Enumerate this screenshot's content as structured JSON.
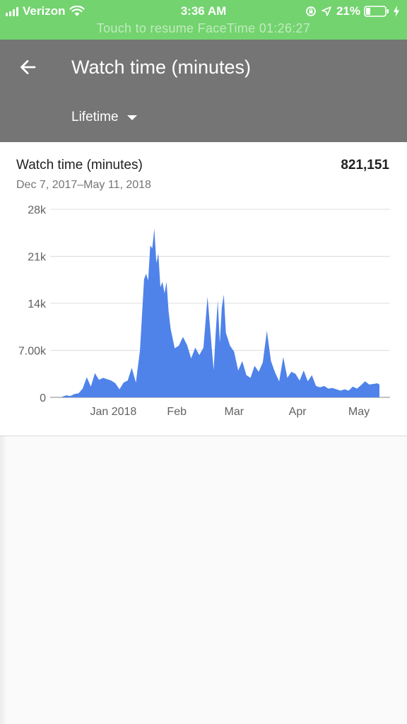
{
  "status_bar": {
    "carrier": "Verizon",
    "time": "3:36 AM",
    "battery": "21%",
    "banner": "Touch to resume FaceTime 01:26:27",
    "icons": [
      "signal-icon",
      "wifi-icon",
      "lock-rotation-icon",
      "location-icon",
      "battery-icon",
      "charging-icon"
    ]
  },
  "header": {
    "title": "Watch time (minutes)",
    "filter_label": "Lifetime",
    "back_icon": "arrow-back-icon"
  },
  "card": {
    "title": "Watch time (minutes)",
    "total": "821,151",
    "date_range": "Dec 7, 2017–May 11, 2018"
  },
  "colors": {
    "status_bar": "#73d36f",
    "app_bar": "#757575",
    "series": "#4f83ea"
  },
  "chart_data": {
    "type": "area",
    "title": "Watch time (minutes)",
    "xlabel": "",
    "ylabel": "",
    "x_range": [
      "2017-12-07",
      "2018-05-11"
    ],
    "ylim": [
      0,
      28000
    ],
    "grid": true,
    "legend": "none",
    "y_ticks": [
      {
        "value": 0,
        "label": "0"
      },
      {
        "value": 7000,
        "label": "7.00k"
      },
      {
        "value": 14000,
        "label": "14k"
      },
      {
        "value": 21000,
        "label": "21k"
      },
      {
        "value": 28000,
        "label": "28k"
      }
    ],
    "x_ticks": [
      {
        "x": "2018-01-01",
        "label": "Jan 2018"
      },
      {
        "x": "2018-02-01",
        "label": "Feb"
      },
      {
        "x": "2018-03-01",
        "label": "Mar"
      },
      {
        "x": "2018-04-01",
        "label": "Apr"
      },
      {
        "x": "2018-05-01",
        "label": "May"
      }
    ],
    "series": [
      {
        "color": "#4f83ea",
        "points": [
          [
            "2017-12-07",
            100
          ],
          [
            "2017-12-09",
            300
          ],
          [
            "2017-12-11",
            200
          ],
          [
            "2017-12-13",
            500
          ],
          [
            "2017-12-15",
            600
          ],
          [
            "2017-12-17",
            1300
          ],
          [
            "2017-12-19",
            3000
          ],
          [
            "2017-12-21",
            1600
          ],
          [
            "2017-12-23",
            3600
          ],
          [
            "2017-12-25",
            2600
          ],
          [
            "2017-12-27",
            2900
          ],
          [
            "2017-12-29",
            2700
          ],
          [
            "2017-12-31",
            2500
          ],
          [
            "2018-01-02",
            2100
          ],
          [
            "2018-01-04",
            1200
          ],
          [
            "2018-01-06",
            2200
          ],
          [
            "2018-01-08",
            2500
          ],
          [
            "2018-01-10",
            4400
          ],
          [
            "2018-01-12",
            2200
          ],
          [
            "2018-01-14",
            7000
          ],
          [
            "2018-01-16",
            17600
          ],
          [
            "2018-01-17",
            18400
          ],
          [
            "2018-01-18",
            17400
          ],
          [
            "2018-01-19",
            22600
          ],
          [
            "2018-01-20",
            22200
          ],
          [
            "2018-01-21",
            25100
          ],
          [
            "2018-01-22",
            20000
          ],
          [
            "2018-01-23",
            21400
          ],
          [
            "2018-01-24",
            16400
          ],
          [
            "2018-01-25",
            17200
          ],
          [
            "2018-01-26",
            15500
          ],
          [
            "2018-01-27",
            17200
          ],
          [
            "2018-01-28",
            12800
          ],
          [
            "2018-01-29",
            10200
          ],
          [
            "2018-01-31",
            7300
          ],
          [
            "2018-02-02",
            7700
          ],
          [
            "2018-02-04",
            9000
          ],
          [
            "2018-02-06",
            7800
          ],
          [
            "2018-02-08",
            5800
          ],
          [
            "2018-02-10",
            7400
          ],
          [
            "2018-02-12",
            6300
          ],
          [
            "2018-02-14",
            7400
          ],
          [
            "2018-02-16",
            15000
          ],
          [
            "2018-02-18",
            7600
          ],
          [
            "2018-02-19",
            4100
          ],
          [
            "2018-02-20",
            9700
          ],
          [
            "2018-02-21",
            14400
          ],
          [
            "2018-02-22",
            8100
          ],
          [
            "2018-02-23",
            13400
          ],
          [
            "2018-02-24",
            15300
          ],
          [
            "2018-02-25",
            9600
          ],
          [
            "2018-02-27",
            7700
          ],
          [
            "2018-03-01",
            6800
          ],
          [
            "2018-03-03",
            4000
          ],
          [
            "2018-03-05",
            5400
          ],
          [
            "2018-03-07",
            3300
          ],
          [
            "2018-03-09",
            2900
          ],
          [
            "2018-03-11",
            4700
          ],
          [
            "2018-03-13",
            3800
          ],
          [
            "2018-03-15",
            5200
          ],
          [
            "2018-03-17",
            9900
          ],
          [
            "2018-03-19",
            5400
          ],
          [
            "2018-03-21",
            3700
          ],
          [
            "2018-03-23",
            2400
          ],
          [
            "2018-03-25",
            6000
          ],
          [
            "2018-03-27",
            2900
          ],
          [
            "2018-03-29",
            3800
          ],
          [
            "2018-03-31",
            3500
          ],
          [
            "2018-04-02",
            2500
          ],
          [
            "2018-04-04",
            4000
          ],
          [
            "2018-04-06",
            2400
          ],
          [
            "2018-04-08",
            3300
          ],
          [
            "2018-04-10",
            1700
          ],
          [
            "2018-04-12",
            1500
          ],
          [
            "2018-04-14",
            1700
          ],
          [
            "2018-04-16",
            1300
          ],
          [
            "2018-04-18",
            1400
          ],
          [
            "2018-04-20",
            1200
          ],
          [
            "2018-04-22",
            1000
          ],
          [
            "2018-04-24",
            1200
          ],
          [
            "2018-04-26",
            1000
          ],
          [
            "2018-04-28",
            1600
          ],
          [
            "2018-04-30",
            1300
          ],
          [
            "2018-05-02",
            1800
          ],
          [
            "2018-05-04",
            2400
          ],
          [
            "2018-05-06",
            1900
          ],
          [
            "2018-05-08",
            2000
          ],
          [
            "2018-05-10",
            2100
          ],
          [
            "2018-05-11",
            1900
          ]
        ]
      }
    ]
  }
}
